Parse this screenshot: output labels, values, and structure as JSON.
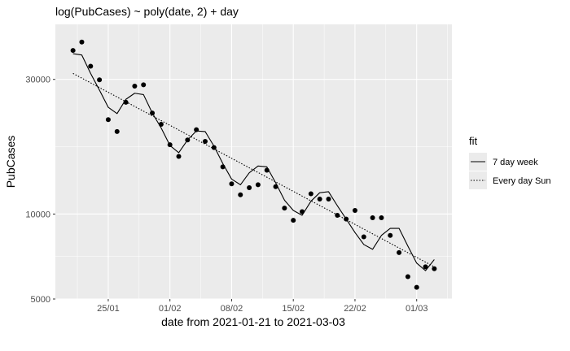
{
  "chart_data": {
    "type": "scatter",
    "title": "log(PubCases) ~ poly(date, 2) + day",
    "xlabel": "date from 2021-01-21 to 2021-03-03",
    "ylabel": "PubCases",
    "y_scale": "log",
    "xlim": [
      "2021-01-19",
      "2021-03-05"
    ],
    "ylim": [
      5000,
      47000
    ],
    "x_ticks": [
      "2021-01-25",
      "2021-02-01",
      "2021-02-08",
      "2021-02-15",
      "2021-02-22",
      "2021-03-01"
    ],
    "x_tick_labels": [
      "25/01",
      "01/02",
      "08/02",
      "15/02",
      "22/02",
      "01/03"
    ],
    "y_ticks": [
      5000,
      10000,
      30000
    ],
    "y_tick_labels": [
      "5000",
      "10000",
      "30000"
    ],
    "grid": true,
    "legend": {
      "title": "fit",
      "placement": "right"
    },
    "series": [
      {
        "name": "observed",
        "kind": "points",
        "x": [
          "2021-01-21",
          "2021-01-22",
          "2021-01-23",
          "2021-01-24",
          "2021-01-25",
          "2021-01-26",
          "2021-01-27",
          "2021-01-28",
          "2021-01-29",
          "2021-01-30",
          "2021-01-31",
          "2021-02-01",
          "2021-02-02",
          "2021-02-03",
          "2021-02-04",
          "2021-02-05",
          "2021-02-06",
          "2021-02-07",
          "2021-02-08",
          "2021-02-09",
          "2021-02-10",
          "2021-02-11",
          "2021-02-12",
          "2021-02-13",
          "2021-02-14",
          "2021-02-15",
          "2021-02-16",
          "2021-02-17",
          "2021-02-18",
          "2021-02-19",
          "2021-02-20",
          "2021-02-21",
          "2021-02-22",
          "2021-02-23",
          "2021-02-24",
          "2021-02-25",
          "2021-02-26",
          "2021-02-27",
          "2021-02-28",
          "2021-03-01",
          "2021-03-02",
          "2021-03-03"
        ],
        "y": [
          38000,
          40700,
          33400,
          29900,
          21600,
          19600,
          24900,
          28400,
          28700,
          22800,
          20800,
          17600,
          16000,
          18300,
          19900,
          18100,
          17200,
          14700,
          12800,
          11700,
          12400,
          12700,
          14300,
          12500,
          10500,
          9500,
          10200,
          11800,
          11300,
          11300,
          9900,
          9600,
          10300,
          8300,
          9700,
          9700,
          8400,
          7300,
          6000,
          5500,
          6500,
          6400
        ],
        "color": "#000000"
      },
      {
        "name": "7 day week",
        "kind": "line",
        "line": "solid",
        "x": [
          "2021-01-21",
          "2021-01-22",
          "2021-01-23",
          "2021-01-24",
          "2021-01-25",
          "2021-01-26",
          "2021-01-27",
          "2021-01-28",
          "2021-01-29",
          "2021-01-30",
          "2021-01-31",
          "2021-02-01",
          "2021-02-02",
          "2021-02-03",
          "2021-02-04",
          "2021-02-05",
          "2021-02-06",
          "2021-02-07",
          "2021-02-08",
          "2021-02-09",
          "2021-02-10",
          "2021-02-11",
          "2021-02-12",
          "2021-02-13",
          "2021-02-14",
          "2021-02-15",
          "2021-02-16",
          "2021-02-17",
          "2021-02-18",
          "2021-02-19",
          "2021-02-20",
          "2021-02-21",
          "2021-02-22",
          "2021-02-23",
          "2021-02-24",
          "2021-02-25",
          "2021-02-26",
          "2021-02-27",
          "2021-02-28",
          "2021-03-01",
          "2021-03-02",
          "2021-03-03"
        ],
        "y": [
          37000,
          36600,
          31500,
          27500,
          23900,
          22700,
          25500,
          26800,
          26500,
          22800,
          20200,
          17500,
          16500,
          18300,
          19700,
          19600,
          17400,
          15100,
          13300,
          12700,
          14000,
          14800,
          14700,
          12900,
          11200,
          10300,
          9900,
          11100,
          11900,
          12000,
          10700,
          9600,
          8600,
          7800,
          7500,
          8400,
          8900,
          8900,
          7700,
          6700,
          6300,
          6900
        ],
        "color": "#000000"
      },
      {
        "name": "Every day Sun",
        "kind": "line",
        "line": "dotted",
        "x": [
          "2021-01-21",
          "2021-03-03"
        ],
        "y": [
          31500,
          6500
        ],
        "color": "#000000"
      }
    ]
  }
}
